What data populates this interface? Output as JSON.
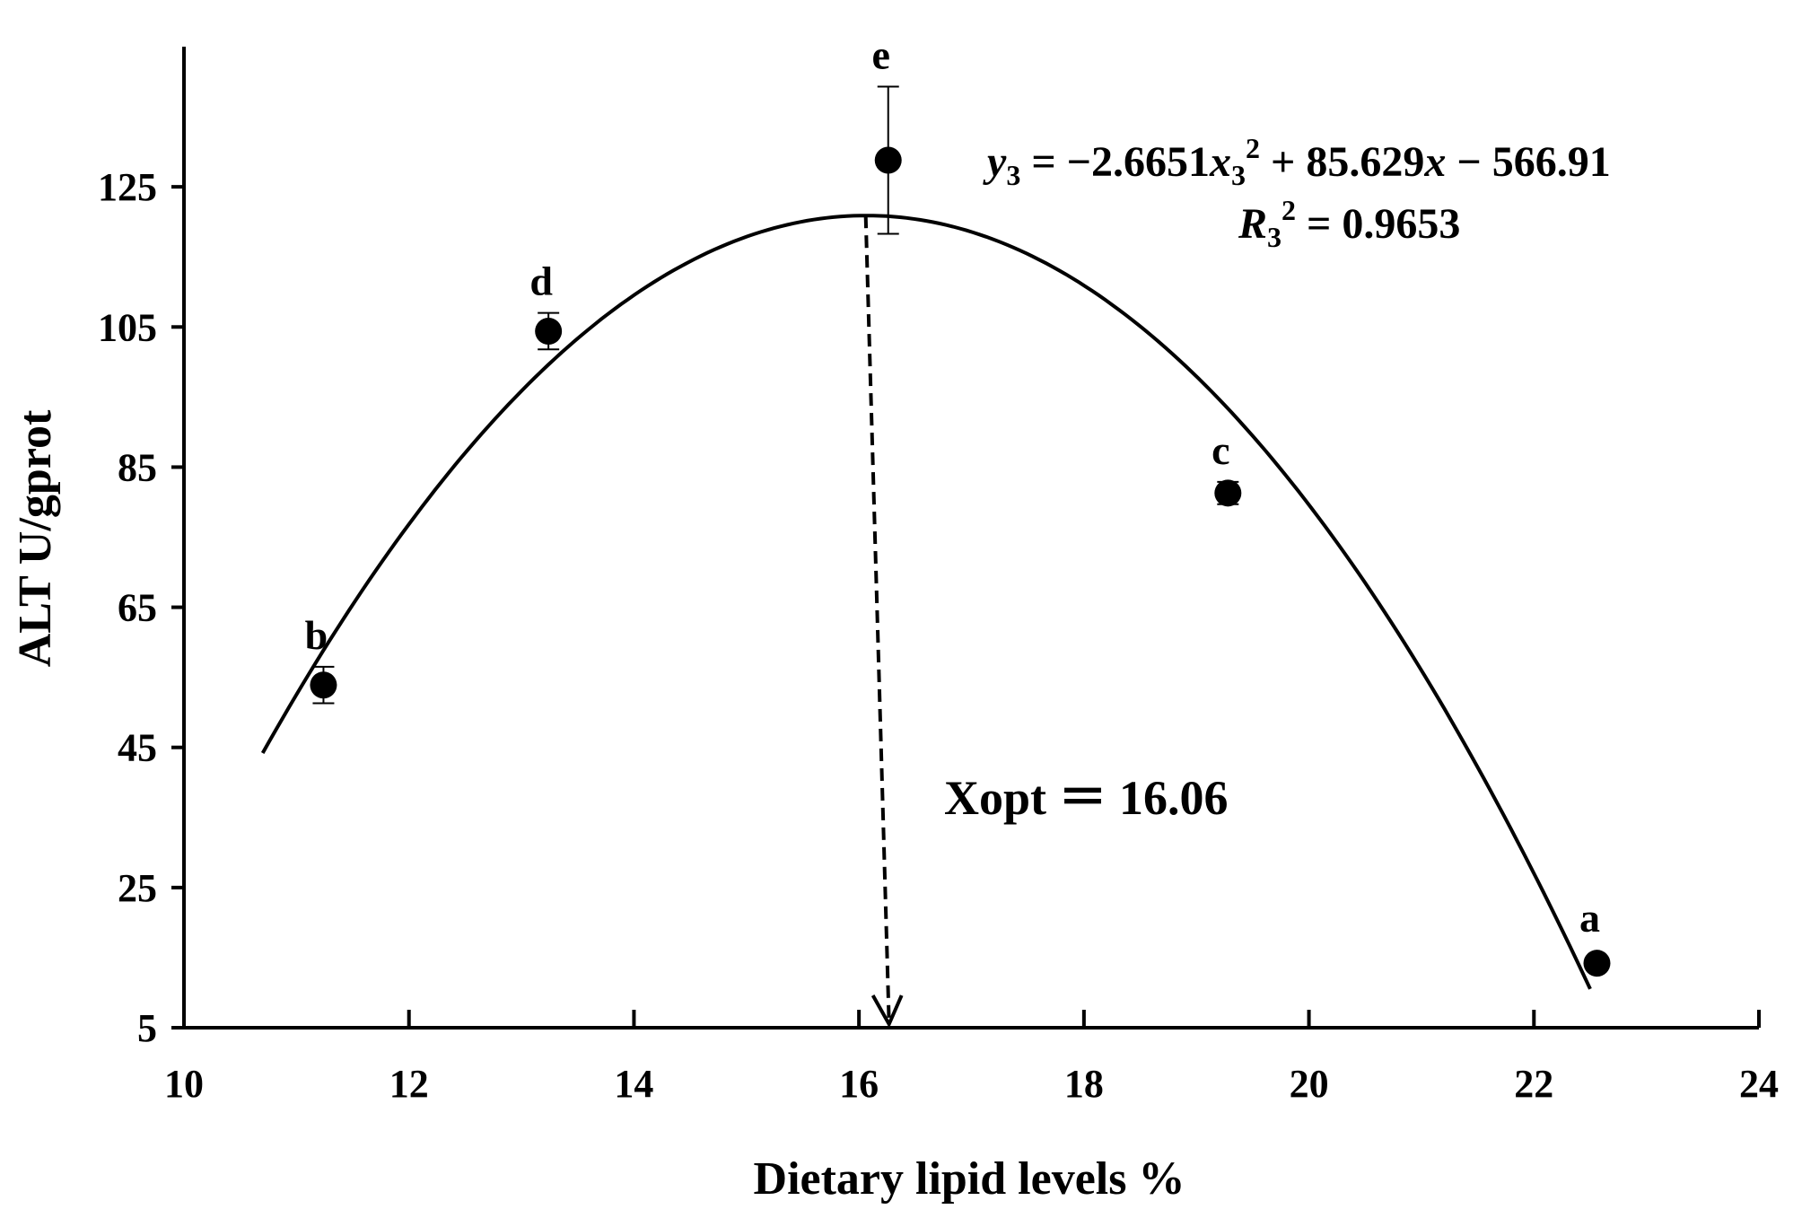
{
  "chart_data": {
    "type": "scatter",
    "xlabel": "Dietary lipid levels %",
    "ylabel": "ALT U/gprot",
    "xlim": [
      10,
      24
    ],
    "ylim": [
      5,
      145
    ],
    "x_ticks": [
      10,
      12,
      14,
      16,
      18,
      20,
      22,
      24
    ],
    "y_ticks": [
      5,
      25,
      45,
      65,
      85,
      105,
      125
    ],
    "grid": false,
    "series": [
      {
        "points": [
          {
            "x": 11.24,
            "y": 53.9,
            "err": 2.6,
            "label": "b"
          },
          {
            "x": 13.24,
            "y": 104.4,
            "err": 2.6,
            "label": "d"
          },
          {
            "x": 16.26,
            "y": 128.8,
            "err": 10.5,
            "label": "e"
          },
          {
            "x": 19.28,
            "y": 81.3,
            "err": 1.6,
            "label": "c"
          },
          {
            "x": 22.56,
            "y": 14.2,
            "err": 0,
            "label": "a"
          }
        ]
      }
    ],
    "fit": {
      "equation_text": "y3 = −2.6651x3^2 + 85.629x − 566.91",
      "r2_text": "R3^2 = 0.9653",
      "coefficients": {
        "a": -2.6651,
        "b": 85.629,
        "c": -566.91
      },
      "x_range": [
        10.7,
        22.5
      ]
    },
    "optimum": {
      "x": 16.06,
      "text": "Xopt ＝ 16.06"
    }
  }
}
